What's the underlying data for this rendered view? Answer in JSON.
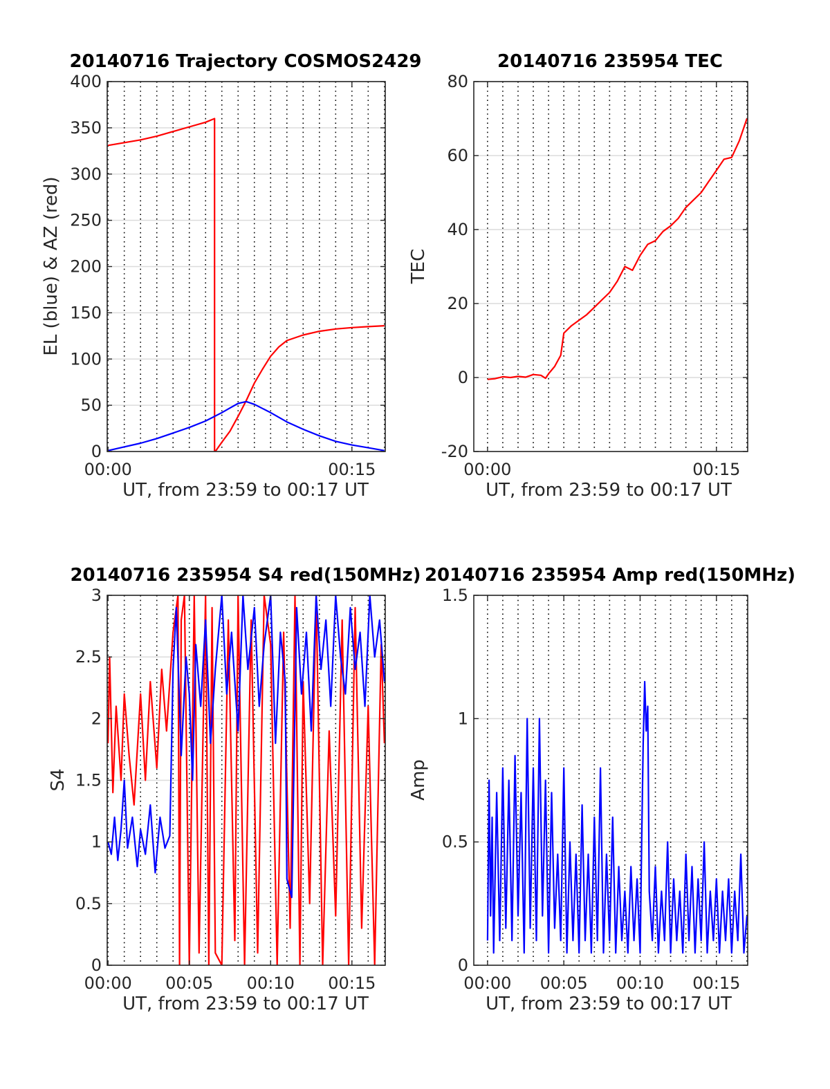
{
  "colors": {
    "az_series": "#ff0000",
    "el_series": "#0000ff",
    "grid_major": "#dcdcdc",
    "grid_minor": "#000000",
    "axis": "#262626"
  },
  "chart_data": [
    {
      "id": "trajectory",
      "type": "line",
      "title": "20140716 Trajectory COSMOS2429",
      "xlabel": "UT, from 23:59 to 00:17 UT",
      "ylabel": "EL (blue) & AZ (red)",
      "xlim": [
        -0.05,
        17.05
      ],
      "ylim": [
        0,
        400
      ],
      "xticks": [
        {
          "value": 0,
          "label": "00:00"
        },
        {
          "value": 15,
          "label": "00:15"
        }
      ],
      "yticks": [
        {
          "value": 0,
          "label": "0"
        },
        {
          "value": 50,
          "label": "50"
        },
        {
          "value": 100,
          "label": "100"
        },
        {
          "value": 150,
          "label": "150"
        },
        {
          "value": 200,
          "label": "200"
        },
        {
          "value": 250,
          "label": "250"
        },
        {
          "value": 300,
          "label": "300"
        },
        {
          "value": 350,
          "label": "350"
        },
        {
          "value": 400,
          "label": "400"
        }
      ],
      "grid": "on",
      "series": [
        {
          "color": "#ff0000",
          "x": [
            0,
            1,
            2,
            3,
            4,
            5,
            6,
            6.55,
            6.55,
            6.6,
            7,
            7.5,
            8,
            8.5,
            9,
            9.5,
            10,
            10.5,
            11,
            12,
            13,
            14,
            15,
            16,
            17
          ],
          "y": [
            331,
            334,
            337,
            341,
            346,
            351,
            356,
            360,
            0,
            0,
            10,
            22,
            38,
            55,
            74,
            89,
            103,
            113,
            120,
            126,
            130,
            132.5,
            134,
            135,
            136
          ]
        },
        {
          "color": "#0000ff",
          "x": [
            0,
            1,
            2,
            3,
            4,
            5,
            6,
            7,
            7.5,
            8,
            8.5,
            9,
            10,
            11,
            12,
            13,
            14,
            15,
            16,
            17
          ],
          "y": [
            1,
            5,
            9,
            14,
            20,
            26,
            33,
            42,
            47,
            52,
            54,
            51,
            42,
            32,
            24,
            17,
            11,
            7,
            4,
            1
          ]
        }
      ]
    },
    {
      "id": "tec",
      "type": "line",
      "title": "20140716 235954 TEC",
      "xlabel": "UT, from 23:59 to 00:17 UT",
      "ylabel": "TEC",
      "xlim": [
        -0.9,
        17.05
      ],
      "ylim": [
        -20,
        80
      ],
      "xticks": [
        {
          "value": 0,
          "label": "00:00"
        },
        {
          "value": 15,
          "label": "00:15"
        }
      ],
      "yticks": [
        {
          "value": -20,
          "label": "-20"
        },
        {
          "value": 0,
          "label": "0"
        },
        {
          "value": 20,
          "label": "20"
        },
        {
          "value": 40,
          "label": "40"
        },
        {
          "value": 60,
          "label": "60"
        },
        {
          "value": 80,
          "label": "80"
        }
      ],
      "grid": "on",
      "series": [
        {
          "color": "#ff0000",
          "x": [
            0,
            0.5,
            1,
            1.5,
            2,
            2.5,
            3,
            3.5,
            3.8,
            4,
            4.4,
            4.8,
            5,
            5.5,
            6,
            6.5,
            7,
            7.5,
            8,
            8.5,
            9,
            9.5,
            10,
            10.5,
            11,
            11.5,
            12,
            12.5,
            13,
            13.5,
            14,
            14.5,
            15,
            15.5,
            16,
            16.5,
            17
          ],
          "y": [
            -0.5,
            -0.3,
            0.2,
            0,
            0.3,
            0.1,
            0.8,
            0.6,
            -0.2,
            1,
            3,
            6,
            12,
            14,
            15.5,
            17,
            19,
            21,
            23,
            26,
            30,
            29,
            33,
            36,
            37,
            39.5,
            41,
            43,
            46,
            48,
            50,
            53,
            56,
            59,
            59.5,
            64,
            70
          ]
        }
      ]
    },
    {
      "id": "s4",
      "type": "line",
      "title": "20140716 235954 S4 red(150MHz)",
      "xlabel": "UT, from 23:59 to 00:17 UT",
      "ylabel": "S4",
      "xlim": [
        -0.05,
        17.05
      ],
      "ylim": [
        0,
        3
      ],
      "xticks": [
        {
          "value": 0,
          "label": "00:00"
        },
        {
          "value": 5,
          "label": "00:05"
        },
        {
          "value": 10,
          "label": "00:10"
        },
        {
          "value": 15,
          "label": "00:15"
        }
      ],
      "yticks": [
        {
          "value": 0,
          "label": "0"
        },
        {
          "value": 0.5,
          "label": "0.5"
        },
        {
          "value": 1,
          "label": "1"
        },
        {
          "value": 1.5,
          "label": "1.5"
        },
        {
          "value": 2,
          "label": "2"
        },
        {
          "value": 2.5,
          "label": "2.5"
        },
        {
          "value": 3,
          "label": "3"
        }
      ],
      "grid": "on",
      "series": [
        {
          "color": "#ff0000",
          "x": [
            0,
            0.1,
            0.3,
            0.5,
            0.8,
            1,
            1.3,
            1.6,
            2,
            2.3,
            2.6,
            3,
            3.3,
            3.6,
            4,
            4.3,
            4.4,
            4.5,
            4.7,
            5,
            5.3,
            5.6,
            6,
            6.2,
            6.4,
            6.6,
            7,
            7.4,
            7.8,
            8,
            8.4,
            8.8,
            9.2,
            9.6,
            10,
            10.4,
            10.8,
            11.2,
            11.5,
            11.8,
            12,
            12.4,
            12.8,
            13.2,
            13.6,
            14,
            14.4,
            14.8,
            15.2,
            15.6,
            16,
            16.4,
            16.8,
            17
          ],
          "y": [
            1.8,
            2.5,
            1.4,
            2.1,
            1.5,
            2.2,
            1.7,
            1.3,
            2.2,
            1.5,
            2.3,
            1.6,
            2.4,
            1.9,
            2.7,
            3,
            0,
            2.8,
            3,
            0,
            3,
            0.1,
            3,
            0,
            2.9,
            0.1,
            0,
            2.8,
            0.2,
            3,
            0,
            2.8,
            0.1,
            3,
            2.6,
            0,
            2.7,
            0.3,
            3,
            0,
            2.3,
            0.5,
            3,
            0,
            1.9,
            0.4,
            2.8,
            0,
            2.9,
            0.3,
            2.1,
            0,
            2.6,
            1.8
          ]
        },
        {
          "color": "#0000ff",
          "x": [
            0,
            0.2,
            0.4,
            0.6,
            0.8,
            1,
            1.2,
            1.5,
            1.8,
            2,
            2.3,
            2.6,
            2.9,
            3.2,
            3.5,
            3.8,
            4,
            4.2,
            4.5,
            4.8,
            5,
            5.2,
            5.4,
            5.7,
            6,
            6.3,
            6.6,
            7,
            7.3,
            7.6,
            8,
            8.3,
            8.6,
            9,
            9.3,
            9.6,
            10,
            10.3,
            10.6,
            10.9,
            11,
            11.3,
            11.6,
            11.9,
            12.2,
            12.5,
            12.8,
            13.1,
            13.4,
            13.7,
            14,
            14.3,
            14.6,
            14.9,
            15.2,
            15.5,
            15.8,
            16.1,
            16.4,
            16.7,
            17
          ],
          "y": [
            1,
            0.9,
            1.2,
            0.85,
            1.1,
            1.5,
            0.95,
            1.2,
            0.8,
            1.1,
            0.9,
            1.3,
            0.75,
            1.2,
            0.95,
            1.05,
            2.4,
            2.9,
            1.7,
            2.5,
            2.2,
            1.5,
            2.6,
            2.1,
            2.8,
            1.8,
            2.4,
            3,
            2.2,
            2.7,
            1.9,
            3,
            2.4,
            2.9,
            2.1,
            2.6,
            3,
            1.8,
            2.7,
            2.3,
            0.7,
            0.55,
            2.9,
            2.2,
            2.7,
            1.9,
            3,
            2.4,
            2.8,
            2.1,
            3,
            2.5,
            2.2,
            2.9,
            2.4,
            2.7,
            2.1,
            3,
            2.5,
            2.8,
            2.3
          ]
        }
      ]
    },
    {
      "id": "amp",
      "type": "line",
      "title": "20140716 235954 Amp red(150MHz)",
      "xlabel": "UT, from 23:59 to 00:17 UT",
      "ylabel": "Amp",
      "xlim": [
        -0.9,
        17.05
      ],
      "ylim": [
        0,
        1.5
      ],
      "xticks": [
        {
          "value": 0,
          "label": "00:00"
        },
        {
          "value": 5,
          "label": "00:05"
        },
        {
          "value": 10,
          "label": "00:10"
        },
        {
          "value": 15,
          "label": "00:15"
        }
      ],
      "yticks": [
        {
          "value": 0,
          "label": "0"
        },
        {
          "value": 0.5,
          "label": "0.5"
        },
        {
          "value": 1,
          "label": "1"
        },
        {
          "value": 1.5,
          "label": "1.5"
        }
      ],
      "grid": "on",
      "series": [
        {
          "color": "#0000ff",
          "x": [
            0,
            0.1,
            0.2,
            0.3,
            0.4,
            0.6,
            0.8,
            1,
            1.2,
            1.4,
            1.6,
            1.8,
            2,
            2.2,
            2.4,
            2.6,
            2.8,
            3,
            3.2,
            3.4,
            3.6,
            3.8,
            4,
            4.2,
            4.4,
            4.6,
            4.8,
            5,
            5.2,
            5.4,
            5.6,
            5.8,
            6,
            6.2,
            6.4,
            6.6,
            6.8,
            7,
            7.2,
            7.4,
            7.6,
            7.8,
            8,
            8.2,
            8.4,
            8.6,
            8.8,
            9,
            9.2,
            9.4,
            9.6,
            9.8,
            10,
            10.1,
            10.2,
            10.3,
            10.4,
            10.5,
            10.6,
            10.8,
            11,
            11.2,
            11.4,
            11.6,
            11.8,
            12,
            12.2,
            12.4,
            12.6,
            12.8,
            13,
            13.2,
            13.4,
            13.6,
            13.8,
            14,
            14.2,
            14.4,
            14.6,
            14.8,
            15,
            15.2,
            15.4,
            15.6,
            15.8,
            16,
            16.2,
            16.4,
            16.6,
            16.8,
            17
          ],
          "y": [
            0.1,
            0.75,
            0.2,
            0.6,
            0.05,
            0.7,
            0.1,
            0.8,
            0.15,
            0.75,
            0.1,
            0.85,
            0.2,
            0.7,
            0.05,
            1,
            0.15,
            0.8,
            0.1,
            1,
            0.2,
            0.75,
            0.05,
            0.7,
            0.15,
            0.45,
            0.1,
            0.8,
            0.05,
            0.5,
            0.1,
            0.45,
            0.05,
            0.65,
            0.1,
            0.45,
            0.05,
            0.6,
            0.1,
            0.8,
            0.05,
            0.45,
            0.1,
            0.6,
            0.05,
            0.4,
            0.1,
            0.3,
            0.05,
            0.4,
            0.1,
            0.35,
            0.05,
            0.5,
            0.9,
            1.15,
            0.95,
            1.05,
            0.3,
            0.1,
            0.4,
            0.05,
            0.3,
            0.1,
            0.5,
            0.05,
            0.35,
            0.1,
            0.3,
            0.05,
            0.45,
            0.1,
            0.4,
            0.05,
            0.35,
            0.1,
            0.5,
            0.05,
            0.3,
            0.1,
            0.35,
            0.05,
            0.3,
            0.1,
            0.35,
            0.05,
            0.3,
            0.1,
            0.45,
            0.05,
            0.2
          ]
        }
      ]
    }
  ]
}
